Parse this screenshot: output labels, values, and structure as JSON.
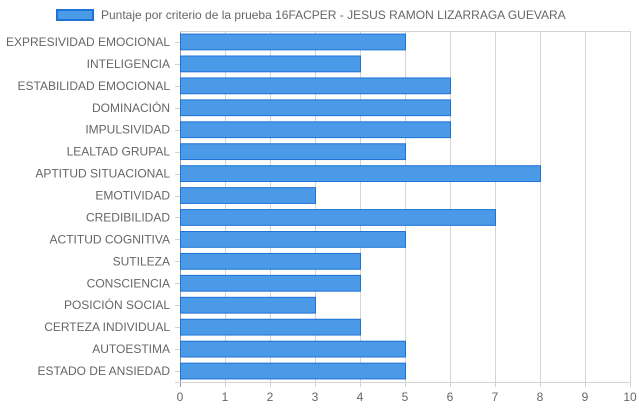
{
  "colors": {
    "bar_fill": "#4a9ae8",
    "bar_border": "#1e73d6",
    "grid": "#d4d4d4",
    "grid_zero": "#999999",
    "text": "#666666"
  },
  "chart_data": {
    "type": "bar",
    "orientation": "horizontal",
    "title": "",
    "xlabel": "",
    "ylabel": "",
    "xlim": [
      0,
      10
    ],
    "x_ticks": [
      "0",
      "1",
      "2",
      "3",
      "4",
      "5",
      "6",
      "7",
      "8",
      "9",
      "10"
    ],
    "grid": true,
    "legend_position": "top",
    "categories": [
      "EXPRESIVIDAD EMOCIONAL",
      "INTELIGENCIA",
      "ESTABILIDAD EMOCIONAL",
      "DOMINACIÓN",
      "IMPULSIVIDAD",
      "LEALTAD GRUPAL",
      "APTITUD SITUACIONAL",
      "EMOTIVIDAD",
      "CREDIBILIDAD",
      "ACTITUD COGNITIVA",
      "SUTILEZA",
      "CONSCIENCIA",
      "POSICIÓN SOCIAL",
      "CERTEZA INDIVIDUAL",
      "AUTOESTIMA",
      "ESTADO DE ANSIEDAD"
    ],
    "series": [
      {
        "name": "Puntaje por criterio de la prueba 16FACPER - JESUS RAMON LIZARRAGA GUEVARA",
        "values": [
          5,
          4,
          6,
          6,
          6,
          5,
          8,
          3,
          7,
          5,
          4,
          4,
          3,
          4,
          5,
          5
        ]
      }
    ]
  }
}
